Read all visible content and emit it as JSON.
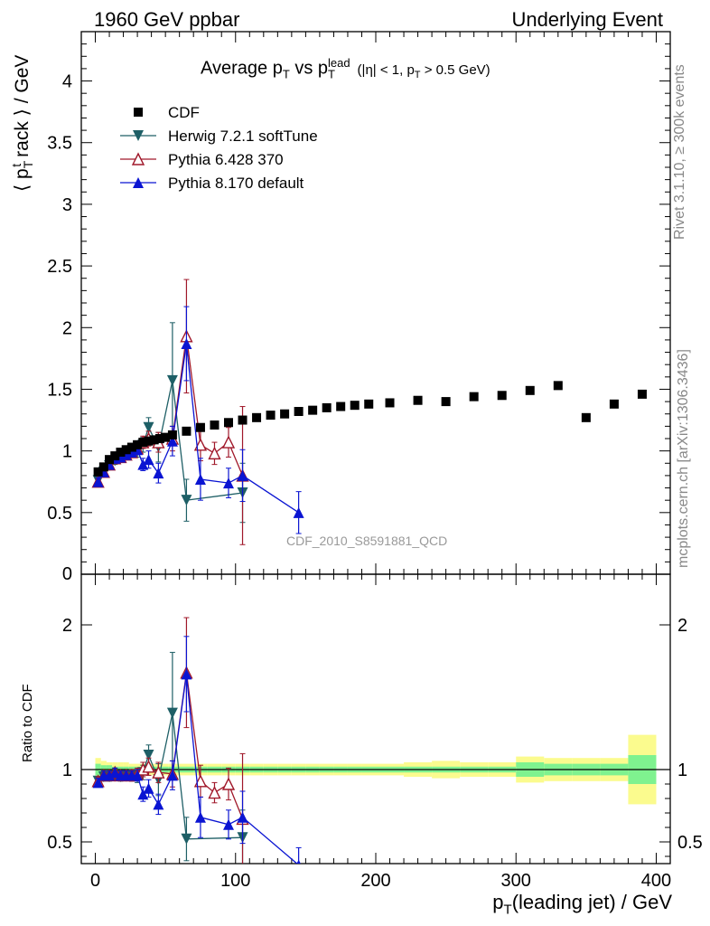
{
  "header": {
    "left": "1960 GeV ppbar",
    "right": "Underlying Event"
  },
  "side_text": {
    "rivet": "Rivet 3.1.10, ≥ 300k events",
    "mcplots": "mcplots.cern.ch [arXiv:1306.3436]"
  },
  "analysis_id": "CDF_2010_S8591881_QCD",
  "colors": {
    "data": "#000000",
    "herwig": "#1e5f66",
    "pythia6": "#a0182a",
    "pythia8": "#0a14d2",
    "band_green": "#7ff28f",
    "band_yellow": "#fbfb8e"
  },
  "chart_data": [
    {
      "type": "scatter",
      "title": "Average p_T vs p_T^lead (|η| < 1, p_T > 0.5 GeV)",
      "title_parts": {
        "main": "Average p",
        "sub1": "T",
        "vs": " vs p",
        "sub2": "T",
        "sup2": "lead",
        "cut": "(|η| < 1, p",
        "cut_sub": "T",
        "cut_end": " > 0.5 GeV)"
      },
      "ylabel": "⟨ p_T^t rack ⟩ / GeV",
      "ylabel_parts": {
        "open": "⟨ p",
        "sub": "T",
        "sup": "t",
        "rest": "rack ⟩ / GeV"
      },
      "xlim": [
        -10,
        410
      ],
      "ylim": [
        0,
        4.4
      ],
      "yticks": [
        "0.5",
        "1",
        "1.5",
        "2",
        "2.5",
        "3",
        "3.5",
        "4"
      ],
      "ytick_values": [
        0.5,
        1,
        1.5,
        2,
        2.5,
        3,
        3.5,
        4
      ],
      "ytick_zero": "0",
      "legend": [
        "CDF",
        "Herwig 7.2.1 softTune",
        "Pythia 6.428 370",
        "Pythia 8.170 default"
      ],
      "legend_position": "top-left",
      "series": [
        {
          "name": "CDF",
          "marker": "square",
          "x": [
            2,
            6,
            10,
            14,
            18,
            22,
            26,
            30,
            34,
            38,
            42,
            46,
            50,
            55,
            65,
            75,
            85,
            95,
            105,
            115,
            125,
            135,
            145,
            155,
            165,
            175,
            185,
            195,
            210,
            230,
            250,
            270,
            290,
            310,
            330,
            350,
            370,
            390
          ],
          "y": [
            0.83,
            0.87,
            0.93,
            0.96,
            0.99,
            1.01,
            1.03,
            1.05,
            1.07,
            1.08,
            1.09,
            1.1,
            1.11,
            1.13,
            1.16,
            1.19,
            1.21,
            1.23,
            1.25,
            1.27,
            1.29,
            1.3,
            1.32,
            1.33,
            1.35,
            1.36,
            1.37,
            1.38,
            1.39,
            1.41,
            1.4,
            1.44,
            1.45,
            1.49,
            1.53,
            1.27,
            1.38,
            1.46
          ]
        },
        {
          "name": "Herwig 7.2.1 softTune",
          "marker": "triangle-down",
          "x": [
            2,
            6,
            10,
            14,
            18,
            22,
            26,
            30,
            34,
            38,
            45,
            55,
            65,
            105
          ],
          "y": [
            0.76,
            0.83,
            0.88,
            0.92,
            0.94,
            0.97,
            0.99,
            1.0,
            1.05,
            1.19,
            1.03,
            1.57,
            0.6,
            0.66
          ],
          "err": [
            0.03,
            0.03,
            0.03,
            0.03,
            0.03,
            0.03,
            0.04,
            0.05,
            0.06,
            0.08,
            0.12,
            0.47,
            0.17,
            0.24
          ]
        },
        {
          "name": "Pythia 6.428 370",
          "marker": "triangle-open",
          "x": [
            2,
            6,
            10,
            14,
            18,
            22,
            26,
            30,
            34,
            38,
            45,
            55,
            65,
            75,
            85,
            95,
            105
          ],
          "y": [
            0.75,
            0.83,
            0.89,
            0.94,
            0.95,
            0.97,
            0.99,
            1.02,
            1.07,
            1.1,
            1.07,
            1.1,
            1.93,
            1.05,
            0.98,
            1.07,
            0.8
          ],
          "err": [
            0.03,
            0.03,
            0.03,
            0.03,
            0.03,
            0.03,
            0.04,
            0.04,
            0.05,
            0.06,
            0.08,
            0.1,
            0.46,
            0.13,
            0.09,
            0.12,
            0.56
          ]
        },
        {
          "name": "Pythia 8.170 default",
          "marker": "triangle-up",
          "x": [
            2,
            6,
            10,
            14,
            18,
            22,
            26,
            30,
            34,
            38,
            45,
            55,
            65,
            75,
            95,
            105,
            145
          ],
          "y": [
            0.75,
            0.83,
            0.89,
            0.94,
            0.95,
            0.97,
            0.99,
            1.01,
            0.89,
            0.93,
            0.82,
            1.08,
            1.87,
            0.77,
            0.74,
            0.8,
            0.5
          ],
          "err": [
            0.03,
            0.03,
            0.03,
            0.03,
            0.03,
            0.03,
            0.03,
            0.04,
            0.05,
            0.07,
            0.08,
            0.12,
            0.3,
            0.17,
            0.12,
            0.21,
            0.17
          ]
        }
      ]
    },
    {
      "type": "line",
      "ylabel": "Ratio to CDF",
      "xlabel": "p_T(leading jet) / GeV",
      "xlabel_parts": {
        "p": "p",
        "sub": "T",
        "rest": "(leading jet) / GeV"
      },
      "xlim": [
        -10,
        410
      ],
      "ylim": [
        0.35,
        2.35
      ],
      "yticks": [
        "0.5",
        "1",
        "2"
      ],
      "ytick_values": [
        0.5,
        1,
        2
      ],
      "xticks": [
        "0",
        "100",
        "200",
        "300",
        "400"
      ],
      "xtick_values": [
        0,
        100,
        200,
        300,
        400
      ],
      "reference_line": 1,
      "bands": {
        "edges": [
          0,
          4,
          8,
          12,
          16,
          20,
          24,
          28,
          32,
          36,
          40,
          44,
          48,
          52,
          60,
          70,
          80,
          90,
          100,
          110,
          120,
          130,
          140,
          150,
          160,
          170,
          180,
          190,
          200,
          220,
          240,
          260,
          280,
          300,
          320,
          340,
          360,
          380,
          400
        ],
        "green": [
          0.04,
          0.03,
          0.03,
          0.02,
          0.02,
          0.02,
          0.02,
          0.02,
          0.02,
          0.02,
          0.02,
          0.02,
          0.02,
          0.02,
          0.02,
          0.02,
          0.02,
          0.02,
          0.02,
          0.02,
          0.02,
          0.02,
          0.02,
          0.02,
          0.02,
          0.02,
          0.02,
          0.02,
          0.02,
          0.02,
          0.02,
          0.02,
          0.02,
          0.05,
          0.04,
          0.04,
          0.04,
          0.1
        ],
        "yellow": [
          0.08,
          0.06,
          0.05,
          0.05,
          0.05,
          0.05,
          0.04,
          0.04,
          0.04,
          0.04,
          0.04,
          0.04,
          0.04,
          0.04,
          0.04,
          0.04,
          0.04,
          0.04,
          0.04,
          0.04,
          0.04,
          0.04,
          0.04,
          0.04,
          0.04,
          0.04,
          0.04,
          0.04,
          0.04,
          0.05,
          0.06,
          0.05,
          0.05,
          0.09,
          0.08,
          0.08,
          0.08,
          0.24
        ]
      },
      "series": [
        {
          "name": "Herwig 7.2.1 softTune",
          "x": [
            2,
            6,
            10,
            14,
            18,
            22,
            26,
            30,
            34,
            38,
            45,
            55,
            65,
            105
          ],
          "y": [
            0.92,
            0.95,
            0.95,
            0.96,
            0.95,
            0.96,
            0.96,
            0.95,
            0.98,
            1.1,
            0.93,
            1.39,
            0.52,
            0.53
          ],
          "err": [
            0.03,
            0.03,
            0.03,
            0.03,
            0.03,
            0.03,
            0.04,
            0.04,
            0.05,
            0.07,
            0.11,
            0.42,
            0.15,
            0.19
          ]
        },
        {
          "name": "Pythia 6.428 370",
          "x": [
            2,
            6,
            10,
            14,
            18,
            22,
            26,
            30,
            34,
            38,
            45,
            55,
            65,
            75,
            85,
            95,
            105
          ],
          "y": [
            0.92,
            0.96,
            0.96,
            0.98,
            0.96,
            0.96,
            0.96,
            0.97,
            1.0,
            1.02,
            0.98,
            0.97,
            1.67,
            0.92,
            0.84,
            0.9,
            0.66
          ],
          "err": [
            0.03,
            0.03,
            0.03,
            0.03,
            0.03,
            0.03,
            0.04,
            0.04,
            0.05,
            0.06,
            0.07,
            0.09,
            0.38,
            0.11,
            0.07,
            0.11,
            0.45
          ]
        },
        {
          "name": "Pythia 8.170 default",
          "x": [
            2,
            6,
            10,
            14,
            18,
            22,
            26,
            30,
            34,
            38,
            45,
            55,
            65,
            75,
            95,
            105,
            145
          ],
          "y": [
            0.91,
            0.96,
            0.96,
            0.98,
            0.96,
            0.96,
            0.96,
            0.96,
            0.83,
            0.87,
            0.76,
            0.96,
            1.66,
            0.67,
            0.62,
            0.67,
            0.34
          ],
          "err": [
            0.03,
            0.03,
            0.03,
            0.03,
            0.03,
            0.03,
            0.03,
            0.04,
            0.05,
            0.06,
            0.07,
            0.1,
            0.26,
            0.14,
            0.1,
            0.18,
            0.12
          ]
        }
      ]
    }
  ]
}
